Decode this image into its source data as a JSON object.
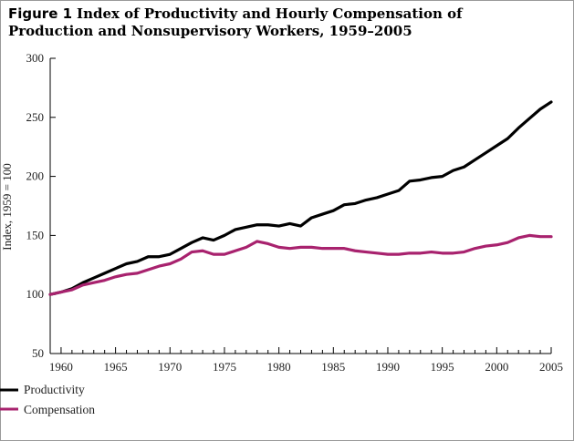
{
  "title": {
    "lead": "Figure 1",
    "line1": "Index of Productivity and Hourly Compensation of",
    "line2": "Production and Nonsupervisory Workers, 1959–2005"
  },
  "chart_data": {
    "type": "line",
    "title": "Figure 1 Index of Productivity and Hourly Compensation of Production and Nonsupervisory Workers, 1959–2005",
    "xlabel": "",
    "ylabel": "Index, 1959 = 100",
    "xlim": [
      1959,
      2005
    ],
    "ylim": [
      50,
      300
    ],
    "xticks": [
      1960,
      1965,
      1970,
      1975,
      1980,
      1985,
      1990,
      1995,
      2000,
      2005
    ],
    "yticks": [
      50,
      100,
      150,
      200,
      250,
      300
    ],
    "grid": false,
    "legend_placement": "bottom-left",
    "x": [
      1959,
      1960,
      1961,
      1962,
      1963,
      1964,
      1965,
      1966,
      1967,
      1968,
      1969,
      1970,
      1971,
      1972,
      1973,
      1974,
      1975,
      1976,
      1977,
      1978,
      1979,
      1980,
      1981,
      1982,
      1983,
      1984,
      1985,
      1986,
      1987,
      1988,
      1989,
      1990,
      1991,
      1992,
      1993,
      1994,
      1995,
      1996,
      1997,
      1998,
      1999,
      2000,
      2001,
      2002,
      2003,
      2004,
      2005
    ],
    "series": [
      {
        "name": "Productivity",
        "color": "#000000",
        "values": [
          100,
          102,
          105,
          110,
          114,
          118,
          122,
          126,
          128,
          132,
          132,
          134,
          139,
          144,
          148,
          146,
          150,
          155,
          157,
          159,
          159,
          158,
          160,
          158,
          165,
          168,
          171,
          176,
          177,
          180,
          182,
          185,
          188,
          196,
          197,
          199,
          200,
          205,
          208,
          214,
          220,
          226,
          232,
          241,
          249,
          257,
          263
        ]
      },
      {
        "name": "Compensation",
        "color": "#a8226e",
        "values": [
          100,
          102,
          104,
          108,
          110,
          112,
          115,
          117,
          118,
          121,
          124,
          126,
          130,
          136,
          137,
          134,
          134,
          137,
          140,
          145,
          143,
          140,
          139,
          140,
          140,
          139,
          139,
          139,
          137,
          136,
          135,
          134,
          134,
          135,
          135,
          136,
          135,
          135,
          136,
          139,
          141,
          142,
          144,
          148,
          150,
          149,
          149
        ]
      }
    ]
  }
}
